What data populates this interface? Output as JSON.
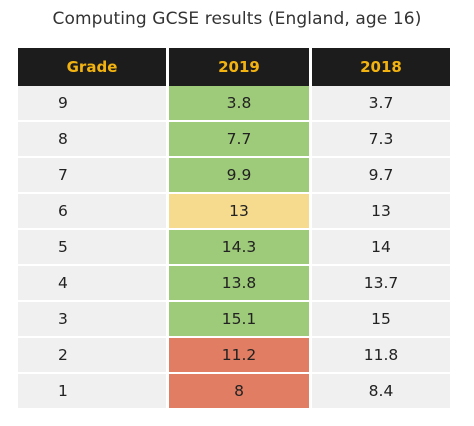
{
  "chart_data": {
    "type": "table",
    "title": "Computing GCSE results (England, age 16)",
    "columns": [
      "Grade",
      "2019",
      "2018"
    ],
    "rows": [
      {
        "grade": "9",
        "y2019": "3.8",
        "y2018": "3.7",
        "highlight": "#9ecb7a"
      },
      {
        "grade": "8",
        "y2019": "7.7",
        "y2018": "7.3",
        "highlight": "#9ecb7a"
      },
      {
        "grade": "7",
        "y2019": "9.9",
        "y2018": "9.7",
        "highlight": "#9ecb7a"
      },
      {
        "grade": "6",
        "y2019": "13",
        "y2018": "13",
        "highlight": "#f6da8e"
      },
      {
        "grade": "5",
        "y2019": "14.3",
        "y2018": "14",
        "highlight": "#9ecb7a"
      },
      {
        "grade": "4",
        "y2019": "13.8",
        "y2018": "13.7",
        "highlight": "#9ecb7a"
      },
      {
        "grade": "3",
        "y2019": "15.1",
        "y2018": "15",
        "highlight": "#9ecb7a"
      },
      {
        "grade": "2",
        "y2019": "11.2",
        "y2018": "11.8",
        "highlight": "#e07d62"
      },
      {
        "grade": "1",
        "y2019": "8",
        "y2018": "8.4",
        "highlight": "#e07d62"
      }
    ]
  },
  "colors": {
    "header_background": "#1c1c1c",
    "header_text": "#f2b311",
    "row_background": "#f0f0f0",
    "increase": "#9ecb7a",
    "same": "#f6da8e",
    "decrease": "#e07d62"
  }
}
